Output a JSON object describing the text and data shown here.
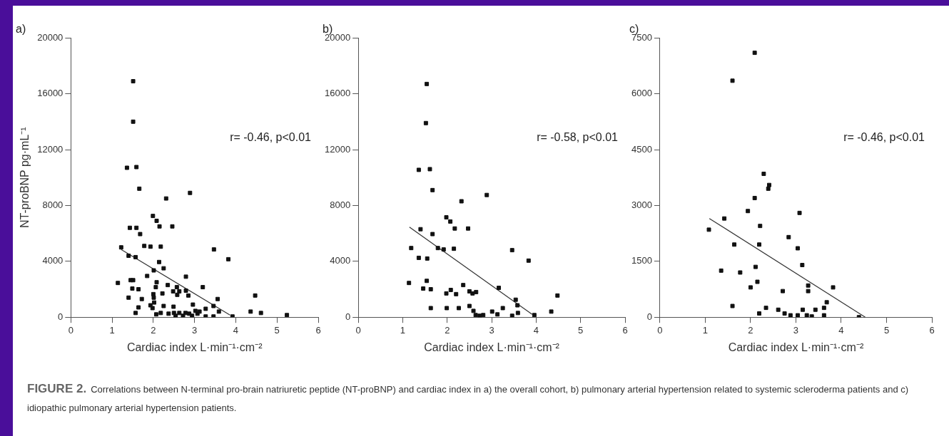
{
  "chart_data": [
    {
      "type": "scatter",
      "title": "a)",
      "xlabel": "Cardiac index L·min⁻¹·cm⁻²",
      "ylabel": "NT-proBNP pg·mL⁻¹",
      "xlim": [
        0,
        6
      ],
      "xticks": [
        0,
        1,
        2,
        3,
        4,
        5,
        6
      ],
      "ylim": [
        0,
        20000
      ],
      "yticks": [
        0,
        4000,
        8000,
        12000,
        16000,
        20000
      ],
      "legend": false,
      "annotations": [
        "r= -0.46, p<0.01"
      ],
      "series": [
        {
          "color": "#111111",
          "marker": "square",
          "x": [
            1.51,
            1.51,
            1.36,
            1.59,
            1.66,
            2.31,
            2.89,
            1.99,
            2.08,
            2.15,
            2.46,
            1.43,
            1.59,
            1.68,
            1.22,
            1.78,
            1.93,
            2.18,
            1.4,
            1.57,
            3.47,
            3.82,
            2.14,
            2.25,
            2.01,
            1.85,
            2.79,
            1.14,
            1.45,
            1.51,
            1.49,
            1.64,
            2.08,
            2.06,
            2.35,
            2.57,
            2.48,
            2.63,
            2.58,
            2.79,
            2.85,
            3.2,
            1.4,
            1.72,
            2.0,
            2.01,
            2.22,
            1.93,
            2.02,
            1.98,
            2.25,
            1.64,
            1.57,
            2.07,
            2.18,
            2.37,
            2.49,
            2.5,
            2.54,
            2.63,
            2.72,
            2.78,
            2.87,
            2.94,
            2.96,
            3.02,
            3.07,
            3.12,
            3.27,
            3.27,
            3.46,
            3.46,
            3.56,
            3.59,
            3.92,
            4.36,
            4.47,
            4.61,
            5.24
          ],
          "values": [
            16900,
            14000,
            10700,
            10750,
            9200,
            8500,
            8900,
            7250,
            6900,
            6500,
            6500,
            6400,
            6400,
            5950,
            5000,
            5100,
            5050,
            5050,
            4400,
            4300,
            4850,
            4150,
            3950,
            3500,
            3350,
            2950,
            2900,
            2450,
            2650,
            2650,
            2050,
            2000,
            2500,
            2150,
            2300,
            2150,
            1850,
            1850,
            1600,
            1900,
            1550,
            2150,
            1400,
            1300,
            1650,
            1400,
            1700,
            850,
            1050,
            650,
            800,
            700,
            300,
            200,
            300,
            250,
            750,
            300,
            100,
            300,
            100,
            300,
            250,
            100,
            900,
            450,
            250,
            400,
            600,
            50,
            800,
            50,
            1300,
            400,
            50,
            400,
            1550,
            300,
            150
          ]
        },
        {
          "type": "line",
          "marker": "none",
          "color": "#333333",
          "x": [
            1.22,
            3.86
          ],
          "values": [
            4850,
            150
          ]
        }
      ]
    },
    {
      "type": "scatter",
      "title": "b)",
      "xlabel": "Cardiac index L·min⁻¹·cm⁻²",
      "xlim": [
        0,
        6
      ],
      "xticks": [
        0,
        1,
        2,
        3,
        4,
        5,
        6
      ],
      "ylim": [
        0,
        20000
      ],
      "yticks": [
        0,
        4000,
        8000,
        12000,
        16000,
        20000
      ],
      "legend": false,
      "annotations": [
        "r= -0.58, p<0.01"
      ],
      "series": [
        {
          "color": "#111111",
          "marker": "square",
          "x": [
            1.54,
            1.52,
            1.36,
            1.61,
            1.67,
            2.32,
            2.89,
            1.98,
            2.07,
            2.17,
            2.47,
            1.4,
            1.67,
            1.19,
            1.79,
            1.92,
            2.15,
            1.36,
            1.55,
            3.46,
            3.83,
            1.14,
            1.54,
            1.46,
            1.63,
            1.98,
            2.08,
            2.2,
            2.36,
            2.5,
            2.57,
            2.65,
            3.16,
            3.54,
            3.58,
            1.63,
            1.99,
            2.26,
            2.5,
            2.59,
            2.64,
            2.73,
            2.81,
            3.01,
            3.13,
            3.25,
            3.46,
            3.59,
            3.96,
            4.34,
            4.48
          ],
          "values": [
            16700,
            13900,
            10550,
            10600,
            9100,
            8300,
            8750,
            7150,
            6850,
            6350,
            6350,
            6300,
            5950,
            4950,
            4950,
            4850,
            4900,
            4250,
            4200,
            4800,
            4050,
            2450,
            2600,
            2050,
            2000,
            1700,
            1950,
            1650,
            2300,
            1850,
            1700,
            1800,
            2100,
            1250,
            850,
            650,
            650,
            650,
            800,
            450,
            150,
            100,
            150,
            400,
            200,
            650,
            100,
            300,
            150,
            400,
            1550
          ]
        },
        {
          "type": "line",
          "marker": "none",
          "color": "#333333",
          "x": [
            1.15,
            3.91
          ],
          "values": [
            6450,
            200
          ]
        }
      ]
    },
    {
      "type": "scatter",
      "title": "c)",
      "xlabel": "Cardiac index L·min⁻¹·cm⁻²",
      "xlim": [
        0,
        6
      ],
      "xticks": [
        0,
        1,
        2,
        3,
        4,
        5,
        6
      ],
      "ylim": [
        0,
        7500
      ],
      "yticks": [
        0,
        1500,
        3000,
        4500,
        6000,
        7500
      ],
      "legend": false,
      "annotations": [
        "r= -0.46, p<0.01"
      ],
      "series": [
        {
          "color": "#111111",
          "marker": "square",
          "x": [
            2.09,
            1.6,
            2.29,
            2.41,
            2.39,
            2.09,
            1.94,
            3.08,
            1.42,
            1.08,
            2.21,
            1.64,
            2.19,
            2.84,
            3.04,
            3.14,
            1.35,
            1.77,
            2.11,
            2.15,
            2.0,
            3.27,
            3.27,
            3.82,
            2.71,
            3.68,
            1.6,
            2.19,
            2.34,
            2.61,
            2.75,
            2.88,
            3.04,
            3.15,
            3.24,
            3.35,
            3.43,
            3.62,
            3.62,
            4.39
          ],
          "values": [
            7100,
            6350,
            3850,
            3550,
            3450,
            3200,
            2850,
            2800,
            2650,
            2350,
            2450,
            1950,
            1950,
            2150,
            1850,
            1400,
            1250,
            1200,
            1350,
            950,
            800,
            850,
            700,
            800,
            700,
            400,
            300,
            100,
            250,
            200,
            100,
            50,
            50,
            200,
            50,
            20,
            200,
            250,
            50,
            0
          ]
        },
        {
          "type": "line",
          "marker": "none",
          "color": "#333333",
          "x": [
            1.09,
            4.53
          ],
          "values": [
            2650,
            0
          ]
        }
      ]
    },
    {
      "type": "other",
      "title": "FIGURE 2.",
      "annotations": [
        "Correlations between N-terminal pro-brain natriuretic peptide (NT-proBNP) and cardiac index in a) the overall cohort, b) pulmonary arterial hypertension related to systemic scleroderma patients and c) idiopathic pulmonary arterial hypertension patients."
      ]
    }
  ]
}
